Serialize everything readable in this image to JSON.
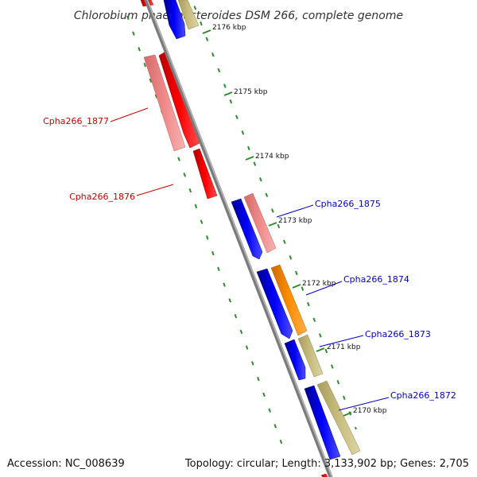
{
  "title": "Chlorobium phaeobacteroides DSM 266, complete genome",
  "footer": {
    "accession": "Accession: NC_008639",
    "summary": "Topology: circular; Length: 3,133,902 bp; Genes: 2,705"
  },
  "colors": {
    "backbone": "#8c8c8c",
    "tick": "#2e8b2e",
    "red_strong": "#ff0000",
    "red_light": "#f08080",
    "blue": "#0000ff",
    "orange": "#ff8c00",
    "khaki": "#c8bd7e",
    "label_red": "#cc0000",
    "label_blue": "#0000cc"
  },
  "ticks": [
    {
      "label": "2176 kbp",
      "position_kbp": 2176
    },
    {
      "label": "2175 kbp",
      "position_kbp": 2175
    },
    {
      "label": "2174 kbp",
      "position_kbp": 2174
    },
    {
      "label": "2173 kbp",
      "position_kbp": 2173
    },
    {
      "label": "2172 kbp",
      "position_kbp": 2172
    },
    {
      "label": "2171 kbp",
      "position_kbp": 2171
    },
    {
      "label": "2170 kbp",
      "position_kbp": 2170
    }
  ],
  "gene_labels": [
    {
      "text": "Cpha266_1877",
      "color": "label_red"
    },
    {
      "text": "Cpha266_1876",
      "color": "label_red"
    },
    {
      "text": "Cpha266_1875",
      "color": "label_blue"
    },
    {
      "text": "Cpha266_1874",
      "color": "label_blue"
    },
    {
      "text": "Cpha266_1873",
      "color": "label_blue"
    },
    {
      "text": "Cpha266_1872",
      "color": "label_blue"
    }
  ]
}
